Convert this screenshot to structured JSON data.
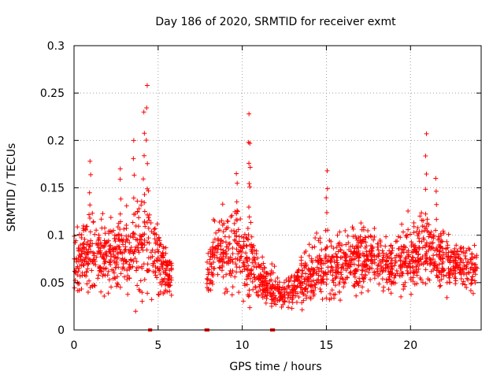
{
  "chart_data": {
    "type": "scatter",
    "title": "Day 186 of 2020, SRMTID for receiver exmt",
    "xlabel": "GPS time / hours",
    "ylabel": "SRMTID / TECUs",
    "xlim": [
      0,
      24.2
    ],
    "ylim": [
      0,
      0.3
    ],
    "xticks": [
      0,
      5,
      10,
      15,
      20
    ],
    "xtick_labels": [
      "0",
      "5",
      "10",
      "15",
      "20"
    ],
    "yticks": [
      0,
      0.05,
      0.1,
      0.15,
      0.2,
      0.25,
      0.3
    ],
    "ytick_labels": [
      "0",
      "0.05",
      "0.1",
      "0.15",
      "0.2",
      "0.25",
      "0.3"
    ],
    "grid": true,
    "marker": "plus",
    "marker_color": "#ff0000",
    "series": [
      {
        "name": "SRMTID",
        "description": "approximate envelope of dense scatter (hour, typical mean, spread, approx. peak)",
        "x_envelope": [
          0,
          0.5,
          1.0,
          1.5,
          2.0,
          2.5,
          3.0,
          3.5,
          4.0,
          4.3,
          4.6,
          5.0,
          5.5,
          5.8,
          7.9,
          8.5,
          9.0,
          9.5,
          9.8,
          10.3,
          10.8,
          11.3,
          11.8,
          12.3,
          12.8,
          13.3,
          13.8,
          14.3,
          14.8,
          15.0,
          15.5,
          16.0,
          16.5,
          17.0,
          17.5,
          18.0,
          18.5,
          19.0,
          19.5,
          20.0,
          20.5,
          21.0,
          21.5,
          22.0,
          22.5,
          23.0,
          23.5,
          24.0
        ],
        "y_mean": [
          0.07,
          0.08,
          0.085,
          0.08,
          0.075,
          0.08,
          0.085,
          0.08,
          0.09,
          0.095,
          0.085,
          0.075,
          0.06,
          0.06,
          0.06,
          0.085,
          0.08,
          0.09,
          0.085,
          0.07,
          0.06,
          0.05,
          0.045,
          0.04,
          0.04,
          0.05,
          0.055,
          0.06,
          0.065,
          0.075,
          0.065,
          0.07,
          0.075,
          0.08,
          0.075,
          0.075,
          0.07,
          0.07,
          0.075,
          0.075,
          0.08,
          0.085,
          0.075,
          0.075,
          0.065,
          0.07,
          0.065,
          0.06
        ],
        "y_spread": [
          0.03,
          0.035,
          0.04,
          0.035,
          0.035,
          0.04,
          0.04,
          0.04,
          0.05,
          0.05,
          0.04,
          0.03,
          0.02,
          0.015,
          0.02,
          0.035,
          0.03,
          0.04,
          0.035,
          0.03,
          0.025,
          0.02,
          0.018,
          0.015,
          0.015,
          0.02,
          0.025,
          0.025,
          0.03,
          0.035,
          0.025,
          0.03,
          0.03,
          0.03,
          0.03,
          0.025,
          0.025,
          0.025,
          0.03,
          0.03,
          0.035,
          0.035,
          0.03,
          0.03,
          0.025,
          0.025,
          0.025,
          0.02
        ],
        "peaks": [
          {
            "x": 0.95,
            "y": 0.178
          },
          {
            "x": 2.75,
            "y": 0.17
          },
          {
            "x": 3.55,
            "y": 0.2
          },
          {
            "x": 4.15,
            "y": 0.23
          },
          {
            "x": 4.35,
            "y": 0.258
          },
          {
            "x": 9.65,
            "y": 0.165
          },
          {
            "x": 10.4,
            "y": 0.228
          },
          {
            "x": 10.45,
            "y": 0.197
          },
          {
            "x": 15.05,
            "y": 0.168
          },
          {
            "x": 20.95,
            "y": 0.207
          },
          {
            "x": 21.5,
            "y": 0.16
          }
        ],
        "zero_markers_x": [
          4.5,
          4.55,
          7.85,
          7.95,
          11.75,
          11.85
        ]
      }
    ]
  }
}
